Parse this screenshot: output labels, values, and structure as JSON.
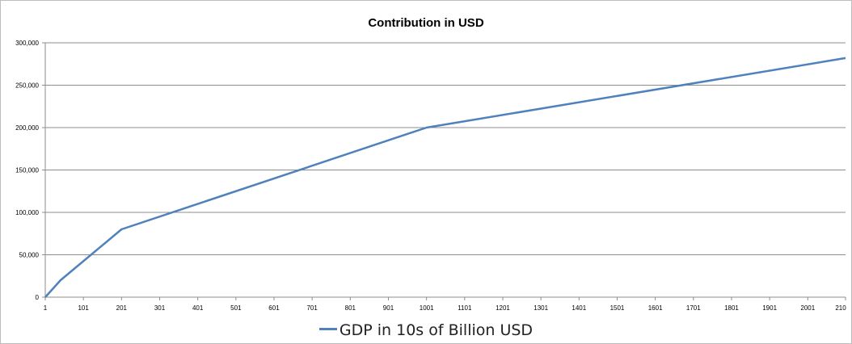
{
  "chart_data": {
    "type": "line",
    "title": "Contribution in  USD",
    "xlabel": "",
    "ylabel": "",
    "x_tick_labels": [
      "1",
      "101",
      "201",
      "301",
      "401",
      "501",
      "601",
      "701",
      "801",
      "901",
      "1001",
      "1101",
      "1201",
      "1301",
      "1401",
      "1501",
      "1601",
      "1701",
      "1801",
      "1901",
      "2001",
      "210"
    ],
    "y_tick_labels": [
      "0",
      "50,000",
      "100,000",
      "150,000",
      "200,000",
      "250,000",
      "300,000"
    ],
    "xlim": [
      1,
      2100
    ],
    "ylim": [
      0,
      300000
    ],
    "grid": true,
    "legend_position": "bottom",
    "series": [
      {
        "name": "GDP in 10s of Billion USD",
        "color": "#4f81bd",
        "x": [
          1,
          41,
          201,
          1001,
          2100
        ],
        "y": [
          0,
          20000,
          80000,
          200000,
          282000
        ]
      }
    ]
  }
}
